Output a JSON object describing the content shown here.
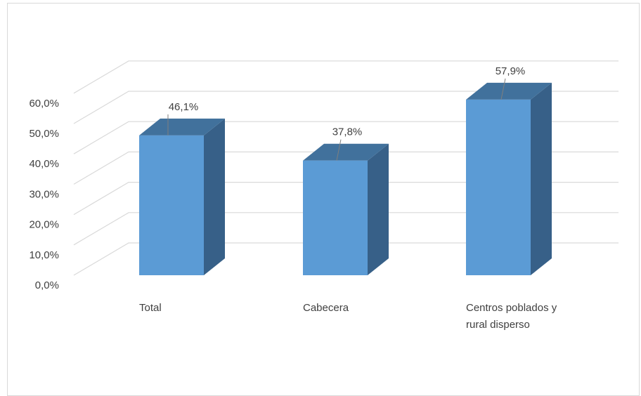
{
  "chart_data": {
    "type": "bar",
    "categories": [
      [
        "Total"
      ],
      [
        "Cabecera"
      ],
      [
        "Centros poblados y",
        "rural disperso"
      ]
    ],
    "values": [
      46.1,
      37.8,
      57.9
    ],
    "data_labels": [
      "46,1%",
      "37,8%",
      "57,9%"
    ],
    "y_ticks": [
      "0,0%",
      "10,0%",
      "20,0%",
      "30,0%",
      "40,0%",
      "50,0%",
      "60,0%"
    ],
    "ylim": [
      0,
      60
    ],
    "grid": true,
    "legend": "none",
    "three_d": true,
    "colors": {
      "front": "#5b9bd5",
      "top": "#41719c",
      "side": "#376088",
      "grid": "#d9d9d9",
      "text": "#404040",
      "leader": "#7f7f7f"
    }
  }
}
